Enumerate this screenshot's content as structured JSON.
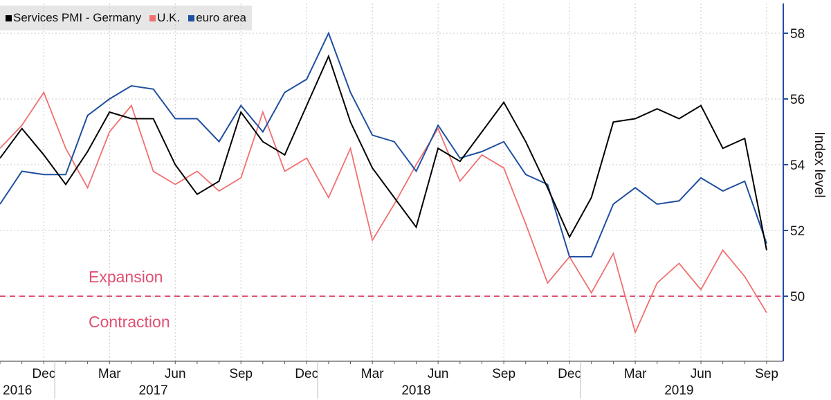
{
  "chart_data": {
    "type": "line",
    "legend": [
      {
        "name": "Services PMI - Germany",
        "color": "#000000"
      },
      {
        "name": "U.K.",
        "color": "#f07070"
      },
      {
        "name": "euro area",
        "color": "#1f4fa0"
      }
    ],
    "ylabel": "Index level",
    "ylim": [
      48,
      59
    ],
    "yticks": [
      50,
      52,
      54,
      56,
      58
    ],
    "x": [
      "2016-10",
      "2016-11",
      "2016-12",
      "2017-01",
      "2017-02",
      "2017-03",
      "2017-04",
      "2017-05",
      "2017-06",
      "2017-07",
      "2017-08",
      "2017-09",
      "2017-10",
      "2017-11",
      "2017-12",
      "2018-01",
      "2018-02",
      "2018-03",
      "2018-04",
      "2018-05",
      "2018-06",
      "2018-07",
      "2018-08",
      "2018-09",
      "2018-10",
      "2018-11",
      "2018-12",
      "2019-01",
      "2019-02",
      "2019-03",
      "2019-04",
      "2019-05",
      "2019-06",
      "2019-07",
      "2019-08",
      "2019-09"
    ],
    "series": [
      {
        "name": "Services PMI - Germany",
        "color": "#000000",
        "values": [
          54.2,
          55.1,
          54.3,
          53.4,
          54.4,
          55.6,
          55.4,
          55.4,
          54.0,
          53.1,
          53.5,
          55.6,
          54.7,
          54.3,
          55.8,
          57.3,
          55.3,
          53.9,
          53.0,
          52.1,
          54.5,
          54.1,
          55.0,
          55.9,
          54.7,
          53.3,
          51.8,
          53.0,
          55.3,
          55.4,
          55.7,
          55.4,
          55.8,
          54.5,
          54.8,
          51.4
        ]
      },
      {
        "name": "U.K.",
        "color": "#f07070",
        "values": [
          54.5,
          55.2,
          56.2,
          54.5,
          53.3,
          55.0,
          55.8,
          53.8,
          53.4,
          53.8,
          53.2,
          53.6,
          55.6,
          53.8,
          54.2,
          53.0,
          54.5,
          51.7,
          52.8,
          54.0,
          55.1,
          53.5,
          54.3,
          53.9,
          52.2,
          50.4,
          51.2,
          50.1,
          51.3,
          48.9,
          50.4,
          51.0,
          50.2,
          51.4,
          50.6,
          49.5
        ]
      },
      {
        "name": "euro area",
        "color": "#1f4fa0",
        "values": [
          52.8,
          53.8,
          53.7,
          53.7,
          55.5,
          56.0,
          56.4,
          56.3,
          55.4,
          55.4,
          54.7,
          55.8,
          55.0,
          56.2,
          56.6,
          58.0,
          56.2,
          54.9,
          54.7,
          53.8,
          55.2,
          54.2,
          54.4,
          54.7,
          53.7,
          53.4,
          51.2,
          51.2,
          52.8,
          53.3,
          52.8,
          52.9,
          53.6,
          53.2,
          53.5,
          51.6
        ]
      }
    ],
    "reference_line": {
      "value": 50,
      "color": "#e05070",
      "style": "dashed"
    },
    "annotations": [
      "Expansion",
      "Contraction"
    ],
    "x_tick_labels": [
      "Dec",
      "Mar",
      "Jun",
      "Sep",
      "Dec",
      "Mar",
      "Jun",
      "Sep",
      "Dec",
      "Mar",
      "Jun",
      "Sep"
    ],
    "x_tick_months": [
      "2016-12",
      "2017-03",
      "2017-06",
      "2017-09",
      "2017-12",
      "2018-03",
      "2018-06",
      "2018-09",
      "2018-12",
      "2019-03",
      "2019-06",
      "2019-09"
    ],
    "year_labels": [
      {
        "label": "2016",
        "month": "2016-10"
      },
      {
        "label": "2017",
        "month": "2017-05"
      },
      {
        "label": "2018",
        "month": "2018-05"
      },
      {
        "label": "2019",
        "month": "2019-05"
      }
    ],
    "grid": true
  }
}
